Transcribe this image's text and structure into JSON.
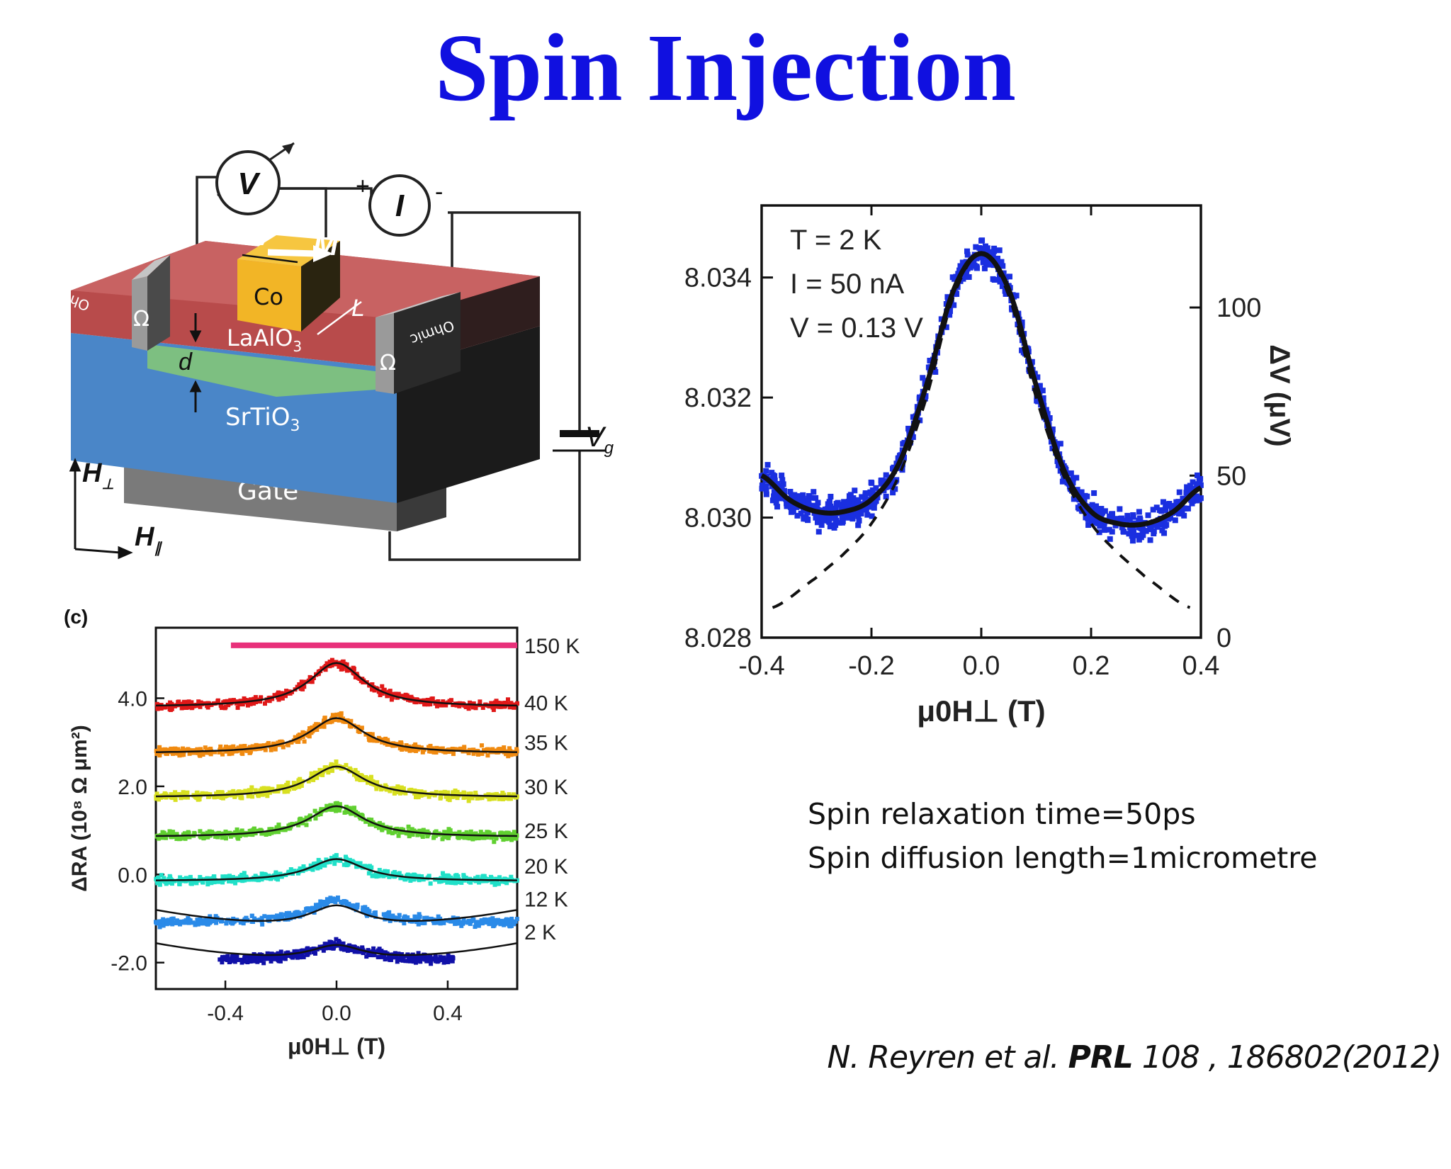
{
  "slide": {
    "title": "Spin Injection",
    "notes": [
      "Spin relaxation time=50ps",
      "Spin diffusion length=1micrometre"
    ],
    "citation": {
      "authors": "N. Reyren et al.",
      "journal": "PRL",
      "ref": "108 , 186802(2012)"
    }
  },
  "device": {
    "labels": {
      "voltmeter": "V",
      "ammeter": "I",
      "plus": "+",
      "minus": "-",
      "w": "W",
      "m": "M",
      "co": "Co",
      "l": "L",
      "laalo": "LaAlO",
      "laalo_sub": "3",
      "d": "d",
      "srtio": "SrTiO",
      "srtio_sub": "3",
      "gate": "Gate",
      "ohm": "Ω",
      "contact": "Ohmic",
      "vg": "V",
      "vg_sub": "g",
      "hperp": "H",
      "hperp_sub": "⊥",
      "hpar": "H",
      "hpar_sub": "∥"
    },
    "colors": {
      "laalo": "#b84b4b",
      "srtio": "#4a86c8",
      "gate": "#7a7a7a",
      "co": "#f2b526",
      "interface": "#8fd16a"
    }
  },
  "chart_data": [
    {
      "type": "scatter",
      "title": "",
      "annotations": [
        "T = 2 K",
        "I = 50 nA",
        "V = 0.13 V"
      ],
      "xlabel": "μ0H⊥ (T)",
      "ylabel": "",
      "y2label": "ΔV (μV)",
      "xlim": [
        -0.4,
        0.4
      ],
      "ylim": [
        8.028,
        8.0352
      ],
      "xticks": [
        -0.4,
        -0.2,
        0.0,
        0.2,
        0.4
      ],
      "xtick_labels": [
        "-0.4",
        "-0.2",
        "0.0",
        "0.2",
        "0.4"
      ],
      "yticks": [
        8.028,
        8.03,
        8.032,
        8.034
      ],
      "ytick_labels": [
        "8.028",
        "8.030",
        "8.032",
        "8.034"
      ],
      "y2ticks": [
        8.028,
        8.0307,
        8.0335
      ],
      "y2tick_labels": [
        "0",
        "50",
        "100"
      ],
      "series_color": "#1a2fe0",
      "fit_curve": {
        "x": [
          -0.4,
          -0.35,
          -0.3,
          -0.25,
          -0.2,
          -0.15,
          -0.1,
          -0.05,
          0.0,
          0.05,
          0.1,
          0.15,
          0.2,
          0.25,
          0.3,
          0.35,
          0.4
        ],
        "y": [
          8.0307,
          8.0303,
          8.0301,
          8.0301,
          8.0303,
          8.0309,
          8.0322,
          8.0338,
          8.0344,
          8.0338,
          8.0322,
          8.0308,
          8.0301,
          8.0299,
          8.0299,
          8.0301,
          8.0305
        ]
      },
      "dashed_curve": {
        "x": [
          -0.38,
          -0.3,
          -0.25,
          -0.2,
          -0.15,
          -0.1,
          -0.05,
          0.0,
          0.05,
          0.1,
          0.15,
          0.2,
          0.25,
          0.3,
          0.38
        ],
        "y": [
          8.0285,
          8.029,
          8.0294,
          8.0299,
          8.0307,
          8.032,
          8.0337,
          8.0344,
          8.0337,
          8.032,
          8.0307,
          8.0299,
          8.0294,
          8.029,
          8.0285
        ]
      }
    },
    {
      "type": "line",
      "panel_label": "(c)",
      "title": "",
      "xlabel": "μ0H⊥ (T)",
      "ylabel": "ΔRA (10⁸ Ω μm²)",
      "xlim": [
        -0.65,
        0.65
      ],
      "ylim": [
        -2.6,
        5.6
      ],
      "xticks": [
        -0.4,
        0.0,
        0.4
      ],
      "xtick_labels": [
        "-0.4",
        "0.0",
        "0.4"
      ],
      "yticks": [
        -2.0,
        0.0,
        2.0,
        4.0
      ],
      "ytick_labels": [
        "-2.0",
        "0.0",
        "2.0",
        "4.0"
      ],
      "series": [
        {
          "name": "150 K",
          "baseline": 5.2,
          "peak": 0.0,
          "color": "#e8307a",
          "x_range": [
            -0.38,
            0.65
          ]
        },
        {
          "name": "40 K",
          "baseline": 3.8,
          "peak": 1.0,
          "color": "#e01818",
          "label_y": 3.9
        },
        {
          "name": "35 K",
          "baseline": 2.75,
          "peak": 0.8,
          "color": "#f08a10",
          "label_y": 3.0
        },
        {
          "name": "30 K",
          "baseline": 1.75,
          "peak": 0.7,
          "color": "#d8e020",
          "label_y": 2.0
        },
        {
          "name": "25 K",
          "baseline": 0.85,
          "peak": 0.7,
          "color": "#60d030",
          "label_y": 1.0
        },
        {
          "name": "20 K",
          "baseline": -0.15,
          "peak": 0.5,
          "color": "#20e0c8",
          "label_y": 0.2
        },
        {
          "name": "12 K",
          "baseline": -1.1,
          "peak": 0.5,
          "color": "#2a8ae8",
          "label_y": -0.55
        },
        {
          "name": "2 K",
          "baseline": -1.95,
          "peak": 0.35,
          "color": "#1010a8",
          "x_range": [
            -0.42,
            0.42
          ],
          "label_y": -1.3
        }
      ]
    }
  ]
}
